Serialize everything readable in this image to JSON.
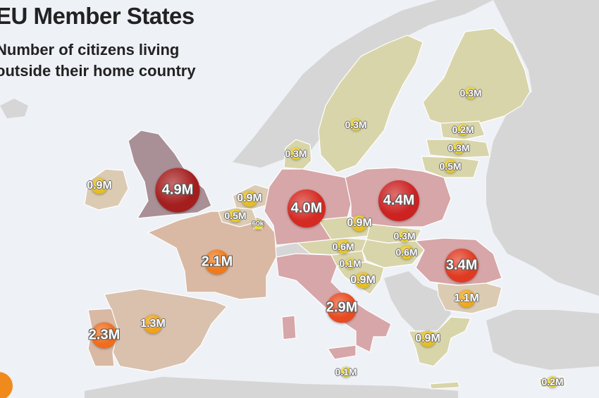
{
  "header": {
    "title": "EU Member States",
    "subtitle_line1": "Number of citizens living",
    "subtitle_line2": "outside their home country"
  },
  "legend": {
    "badge_color": "#f08a1c"
  },
  "colors": {
    "sea": "#eef1f6",
    "non_eu_land": "#d6d6d6",
    "tier_lowest": "#d9d5aa",
    "tier_low": "#dccbb3",
    "tier_mid": "#d9b9a4",
    "tier_high": "#d7a6a8",
    "uk": "#a99096"
  },
  "bubbles": [
    {
      "country": "United Kingdom",
      "label": "4.9M",
      "value_millions": 4.9,
      "color": "#a51e1e"
    },
    {
      "country": "Poland",
      "label": "4.4M",
      "value_millions": 4.4,
      "color": "#cc2222"
    },
    {
      "country": "Germany",
      "label": "4.0M",
      "value_millions": 4.0,
      "color": "#d42a22"
    },
    {
      "country": "Romania",
      "label": "3.4M",
      "value_millions": 3.4,
      "color": "#e03b22"
    },
    {
      "country": "Italy",
      "label": "2.9M",
      "value_millions": 2.9,
      "color": "#e94a20"
    },
    {
      "country": "Portugal",
      "label": "2.3M",
      "value_millions": 2.3,
      "color": "#ef6d1c"
    },
    {
      "country": "France",
      "label": "2.1M",
      "value_millions": 2.1,
      "color": "#ef7a1c"
    },
    {
      "country": "Spain",
      "label": "1.3M",
      "value_millions": 1.3,
      "color": "#eea21d"
    },
    {
      "country": "Bulgaria",
      "label": "1.1M",
      "value_millions": 1.1,
      "color": "#eea81d"
    },
    {
      "country": "Ireland",
      "label": "0.9M",
      "value_millions": 0.9,
      "color": "#e5be22"
    },
    {
      "country": "Netherlands",
      "label": "0.9M",
      "value_millions": 0.9,
      "color": "#e5be22"
    },
    {
      "country": "Czechia",
      "label": "0.9M",
      "value_millions": 0.9,
      "color": "#e5be22"
    },
    {
      "country": "Croatia",
      "label": "0.9M",
      "value_millions": 0.9,
      "color": "#e5be22"
    },
    {
      "country": "Greece",
      "label": "0.9M",
      "value_millions": 0.9,
      "color": "#e5be22"
    },
    {
      "country": "Belgium",
      "label": "0.5M",
      "value_millions": 0.5,
      "color": "#e6c826"
    },
    {
      "country": "Lithuania",
      "label": "0.5M",
      "value_millions": 0.5,
      "color": "#e6c826"
    },
    {
      "country": "Austria",
      "label": "0.6M",
      "value_millions": 0.6,
      "color": "#e6c426"
    },
    {
      "country": "Hungary",
      "label": "0.6M",
      "value_millions": 0.6,
      "color": "#e6c426"
    },
    {
      "country": "Denmark",
      "label": "0.3M",
      "value_millions": 0.3,
      "color": "#e9d02b"
    },
    {
      "country": "Sweden",
      "label": "0.3M",
      "value_millions": 0.3,
      "color": "#e9d02b"
    },
    {
      "country": "Finland",
      "label": "0.3M",
      "value_millions": 0.3,
      "color": "#e9d02b"
    },
    {
      "country": "Latvia",
      "label": "0.3M",
      "value_millions": 0.3,
      "color": "#e9d02b"
    },
    {
      "country": "Slovakia",
      "label": "0.3M",
      "value_millions": 0.3,
      "color": "#e9d02b"
    },
    {
      "country": "Estonia",
      "label": "0.2M",
      "value_millions": 0.2,
      "color": "#ebd430"
    },
    {
      "country": "Cyprus",
      "label": "0.2M",
      "value_millions": 0.2,
      "color": "#ebd430"
    },
    {
      "country": "Slovenia",
      "label": "0.1M",
      "value_millions": 0.1,
      "color": "#ecd834"
    },
    {
      "country": "Malta",
      "label": "0.1M",
      "value_millions": 0.1,
      "color": "#ecd834"
    },
    {
      "country": "Luxembourg",
      "label": "60k",
      "value_millions": 0.06,
      "color": "#eddb38"
    }
  ]
}
